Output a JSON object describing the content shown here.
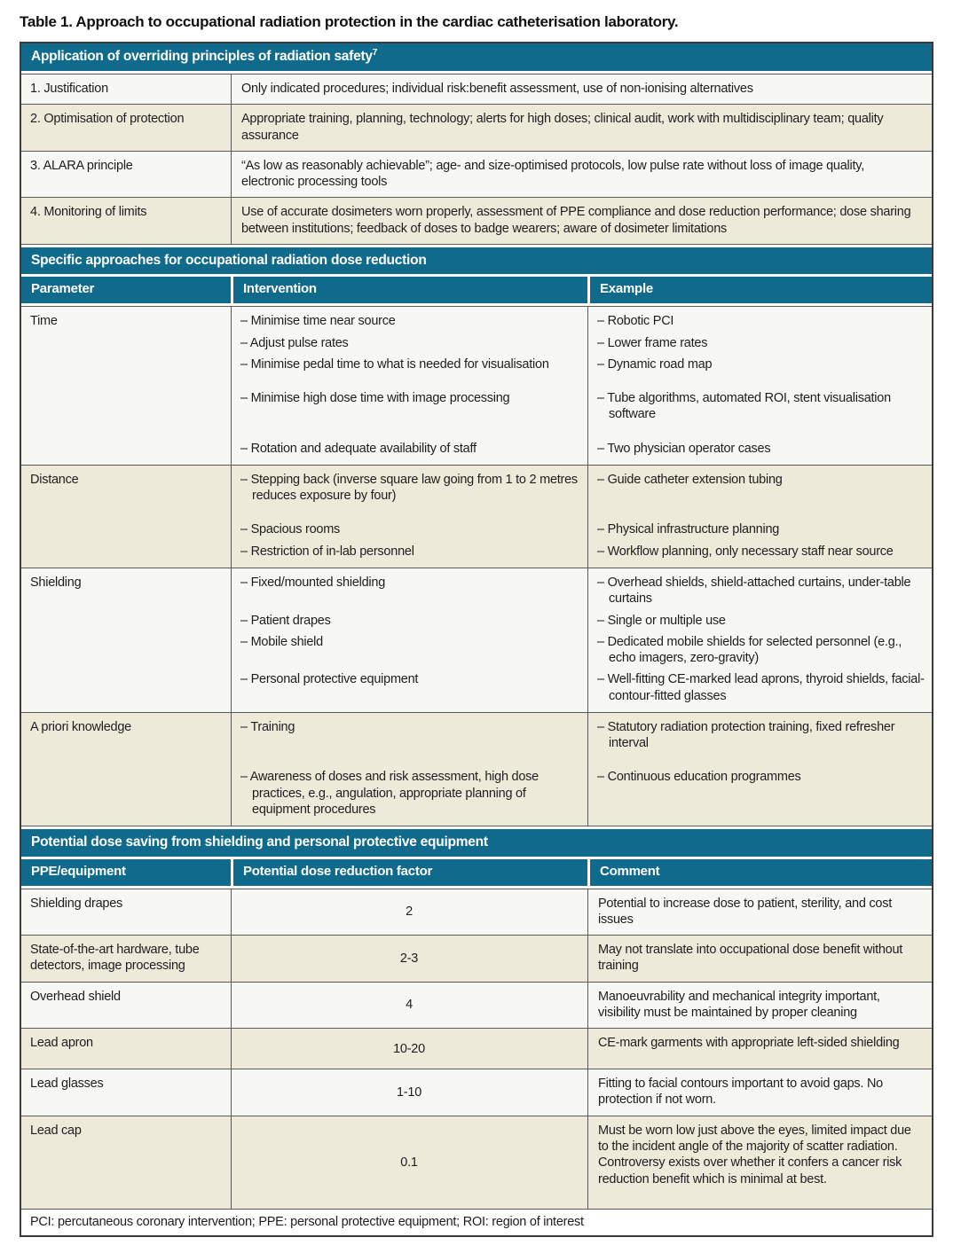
{
  "title": "Table 1. Approach to occupational radiation protection in the cardiac catheterisation laboratory.",
  "colors": {
    "teal_band": "#0F6A8C",
    "beige_row": "#EEEADA",
    "light_row": "#F7F7F4",
    "border": "#5A5A5A"
  },
  "principles": {
    "header": "Application of overriding principles of radiation safety",
    "header_sup": "7",
    "rows": [
      {
        "label": "1. Justification",
        "text": "Only indicated procedures; individual risk:benefit assessment, use of non-ionising alternatives"
      },
      {
        "label": "2. Optimisation of protection",
        "text": "Appropriate training, planning, technology; alerts for high doses; clinical audit, work with multidisciplinary team; quality assurance"
      },
      {
        "label": "3. ALARA principle",
        "text": "“As low as reasonably achievable”; age- and size-optimised protocols, low pulse rate without loss of image quality, electronic processing tools"
      },
      {
        "label": "4. Monitoring of limits",
        "text": "Use of accurate dosimeters worn properly, assessment of PPE compliance and dose reduction performance; dose sharing between institutions; feedback of doses to badge wearers; aware of dosimeter limitations"
      }
    ]
  },
  "approaches": {
    "header": "Specific approaches for occupational radiation dose reduction",
    "columns": [
      "Parameter",
      "Intervention",
      "Example"
    ],
    "rows": [
      {
        "parameter": "Time",
        "pairs": [
          {
            "intervention": "– Minimise time near source",
            "example": "– Robotic PCI"
          },
          {
            "intervention": "– Adjust pulse rates",
            "example": "– Lower frame rates"
          },
          {
            "intervention": "– Minimise pedal time to what is needed for visualisation",
            "example": "– Dynamic road map"
          },
          {
            "intervention": "– Minimise high dose time with image processing",
            "example": "– Tube algorithms, automated ROI, stent visualisation software"
          },
          {
            "intervention": "– Rotation and adequate availability of staff",
            "example": "– Two physician operator cases"
          }
        ]
      },
      {
        "parameter": "Distance",
        "pairs": [
          {
            "intervention": "– Stepping back (inverse square law going from 1 to 2 metres reduces exposure by four)",
            "example": "– Guide catheter extension tubing"
          },
          {
            "intervention": "– Spacious rooms",
            "example": "– Physical infrastructure planning"
          },
          {
            "intervention": "– Restriction of in-lab personnel",
            "example": "– Workflow planning, only necessary staff near source"
          }
        ]
      },
      {
        "parameter": "Shielding",
        "pairs": [
          {
            "intervention": "– Fixed/mounted shielding",
            "example": "– Overhead shields, shield-attached curtains, under-table curtains"
          },
          {
            "intervention": "– Patient drapes",
            "example": "– Single or multiple use"
          },
          {
            "intervention": "– Mobile shield",
            "example": "– Dedicated mobile shields for selected personnel (e.g., echo imagers, zero-gravity)"
          },
          {
            "intervention": "– Personal protective equipment",
            "example": "– Well-fitting CE-marked lead aprons, thyroid shields, facial-contour-fitted glasses"
          }
        ]
      },
      {
        "parameter": "A priori knowledge",
        "pairs": [
          {
            "intervention": "– Training",
            "example": "– Statutory radiation protection training, fixed refresher interval"
          },
          {
            "intervention": "– Awareness of doses and risk assessment, high dose practices, e.g., angulation, appropriate planning of equipment procedures",
            "example": "– Continuous education programmes"
          }
        ]
      }
    ]
  },
  "dose_saving": {
    "header": "Potential dose saving from shielding and personal protective equipment",
    "columns": [
      "PPE/equipment",
      "Potential dose reduction factor",
      "Comment"
    ],
    "rows": [
      {
        "equipment": "Shielding drapes",
        "factor": "2",
        "comment": "Potential to increase dose to patient, sterility, and cost issues"
      },
      {
        "equipment": "State-of-the-art hardware, tube detectors, image processing",
        "factor": "2-3",
        "comment": "May not translate into occupational dose benefit without training"
      },
      {
        "equipment": "Overhead shield",
        "factor": "4",
        "comment": "Manoeuvrability and mechanical integrity important, visibility must be maintained by proper cleaning"
      },
      {
        "equipment": "Lead apron",
        "factor": "10-20",
        "comment": "CE-mark garments with appropriate left-sided shielding"
      },
      {
        "equipment": "Lead glasses",
        "factor": "1-10",
        "comment": "Fitting to facial contours important to avoid gaps. No protection if not worn."
      },
      {
        "equipment": "Lead cap",
        "factor": "0.1",
        "comment": "Must be worn low just above the eyes, limited impact due to the incident angle of the majority of scatter radiation. Controversy exists over whether it confers a cancer risk reduction benefit which is minimal at best."
      }
    ]
  },
  "footnote": "PCI: percutaneous coronary intervention; PPE: personal protective equipment; ROI: region of interest"
}
